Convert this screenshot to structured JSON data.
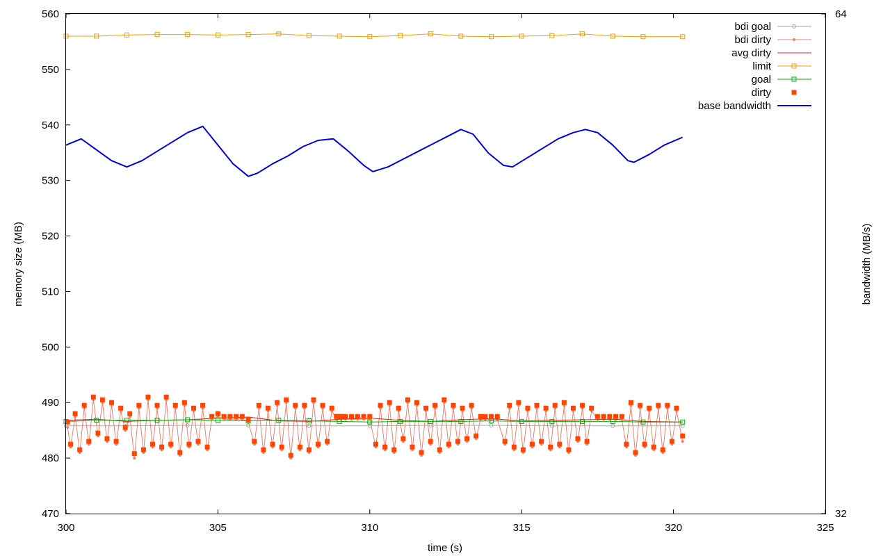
{
  "chart_data": {
    "type": "line",
    "xlabel": "time (s)",
    "ylabel": "memory size (MB)",
    "y2label": "bandwidth (MB/s)",
    "xlim": [
      300,
      325
    ],
    "ylim": [
      470,
      560
    ],
    "y2lim": [
      32,
      64
    ],
    "x_ticks": [
      "300",
      "305",
      "310",
      "315",
      "320",
      "325"
    ],
    "y_ticks": [
      "470",
      "480",
      "490",
      "500",
      "510",
      "520",
      "530",
      "540",
      "550",
      "560"
    ],
    "y2_ticks": [
      "32",
      "64"
    ],
    "grid": false,
    "legend_position": "top-right",
    "series": [
      {
        "name": "bdi goal",
        "color": "#a8a8a8",
        "style": "line-circles",
        "x": [
          300.0,
          302.0,
          304.0,
          306.0,
          308.0,
          310.0,
          312.0,
          314.0,
          316.0,
          318.0,
          320.3
        ],
        "y": [
          485.8,
          485.8,
          485.9,
          485.9,
          485.8,
          485.8,
          485.9,
          485.9,
          485.8,
          485.8,
          485.8
        ]
      },
      {
        "name": "bdi dirty",
        "color": "#f08070",
        "style": "line-dots",
        "x": [
          300.05,
          300.15,
          300.3,
          300.45,
          300.6,
          300.75,
          300.9,
          301.05,
          301.2,
          301.35,
          301.5,
          301.65,
          301.8,
          301.95,
          302.1,
          302.25,
          302.4,
          302.55,
          302.7,
          302.85,
          303.0,
          303.15,
          303.3,
          303.45,
          303.6,
          303.75,
          303.9,
          304.05,
          304.2,
          304.35,
          304.5,
          304.65,
          304.8,
          305.0,
          305.2,
          305.4,
          305.6,
          305.8,
          306.0,
          306.2,
          306.35,
          306.5,
          306.65,
          306.8,
          306.95,
          307.1,
          307.25,
          307.4,
          307.55,
          307.7,
          307.85,
          308.0,
          308.15,
          308.3,
          308.45,
          308.6,
          308.75,
          308.9,
          309.05,
          309.2,
          309.4,
          309.6,
          309.8,
          310.0,
          310.2,
          310.35,
          310.5,
          310.65,
          310.8,
          310.95,
          311.1,
          311.25,
          311.4,
          311.55,
          311.7,
          311.85,
          312.0,
          312.15,
          312.3,
          312.45,
          312.6,
          312.75,
          312.9,
          313.05,
          313.2,
          313.35,
          313.5,
          313.65,
          313.8,
          314.0,
          314.2,
          314.45,
          314.6,
          314.75,
          314.9,
          315.05,
          315.2,
          315.35,
          315.5,
          315.65,
          315.8,
          315.95,
          316.1,
          316.25,
          316.4,
          316.55,
          316.7,
          316.85,
          317.0,
          317.15,
          317.3,
          317.5,
          317.7,
          317.9,
          318.1,
          318.3,
          318.45,
          318.6,
          318.75,
          318.9,
          319.05,
          319.2,
          319.35,
          319.5,
          319.65,
          319.8,
          319.95,
          320.1,
          320.3
        ],
        "y": [
          485.5,
          482.0,
          487.5,
          481.0,
          489.0,
          482.5,
          490.5,
          484.0,
          490.0,
          483.0,
          489.5,
          482.5,
          488.5,
          485.0,
          487.5,
          480.0,
          489.0,
          481.0,
          490.5,
          482.0,
          489.0,
          481.5,
          490.5,
          482.0,
          489.0,
          480.5,
          489.5,
          482.0,
          488.5,
          482.5,
          489.0,
          481.5,
          487.0,
          487.5,
          487.0,
          487.0,
          487.0,
          487.0,
          486.5,
          482.5,
          489.0,
          481.0,
          488.5,
          482.0,
          489.5,
          481.5,
          490.0,
          480.0,
          489.0,
          481.5,
          489.0,
          481.0,
          490.0,
          482.0,
          489.0,
          482.5,
          488.5,
          487.0,
          487.0,
          487.0,
          487.0,
          487.0,
          487.0,
          487.0,
          482.0,
          489.0,
          481.5,
          489.5,
          481.0,
          488.5,
          483.0,
          490.0,
          481.5,
          489.5,
          480.5,
          488.5,
          482.5,
          489.0,
          481.0,
          490.0,
          482.0,
          489.0,
          482.5,
          488.5,
          483.0,
          489.0,
          483.5,
          487.0,
          487.0,
          487.0,
          487.0,
          482.5,
          489.0,
          481.5,
          489.5,
          481.0,
          488.5,
          482.0,
          489.0,
          482.5,
          488.5,
          481.5,
          489.0,
          482.0,
          489.5,
          481.0,
          488.5,
          483.0,
          489.0,
          482.5,
          488.5,
          487.0,
          487.0,
          487.0,
          487.0,
          487.0,
          482.0,
          489.5,
          480.5,
          489.0,
          482.0,
          488.5,
          481.5,
          489.0,
          481.0,
          489.0,
          482.5,
          488.5,
          483.0
        ]
      },
      {
        "name": "avg dirty",
        "color": "#e02020",
        "style": "line",
        "x": [
          300.0,
          301.0,
          302.0,
          303.0,
          304.0,
          305.0,
          306.0,
          307.0,
          308.0,
          309.0,
          310.0,
          311.0,
          312.0,
          313.0,
          314.0,
          315.0,
          316.0,
          317.0,
          318.0,
          319.0,
          320.3
        ],
        "y": [
          486.8,
          487.0,
          486.6,
          486.8,
          486.9,
          487.2,
          487.4,
          486.7,
          486.6,
          487.0,
          487.2,
          486.8,
          486.6,
          486.9,
          487.1,
          486.7,
          486.8,
          486.9,
          487.0,
          486.6,
          486.5
        ]
      },
      {
        "name": "limit",
        "color": "#f0a000",
        "style": "line-squares",
        "x": [
          300.0,
          301.0,
          302.0,
          303.0,
          304.0,
          305.0,
          306.0,
          307.0,
          308.0,
          309.0,
          310.0,
          311.0,
          312.0,
          313.0,
          314.0,
          315.0,
          316.0,
          317.0,
          318.0,
          319.0,
          320.3
        ],
        "y": [
          556.0,
          556.0,
          556.2,
          556.3,
          556.3,
          556.2,
          556.3,
          556.4,
          556.1,
          556.0,
          555.9,
          556.1,
          556.4,
          556.0,
          555.9,
          556.0,
          556.1,
          556.4,
          556.0,
          555.9,
          555.9
        ]
      },
      {
        "name": "goal",
        "color": "#00b000",
        "style": "line-squares",
        "x": [
          300.0,
          301.0,
          302.0,
          303.0,
          304.0,
          305.0,
          306.0,
          307.0,
          308.0,
          309.0,
          310.0,
          311.0,
          312.0,
          313.0,
          314.0,
          315.0,
          316.0,
          317.0,
          318.0,
          319.0,
          320.3
        ],
        "y": [
          486.6,
          486.8,
          486.8,
          486.8,
          486.9,
          486.8,
          486.7,
          486.8,
          486.7,
          486.6,
          486.5,
          486.6,
          486.6,
          486.6,
          486.7,
          486.6,
          486.6,
          486.6,
          486.6,
          486.5,
          486.5
        ]
      },
      {
        "name": "dirty",
        "color": "#ff4500",
        "style": "points",
        "x": [
          300.05,
          300.15,
          300.3,
          300.45,
          300.6,
          300.75,
          300.9,
          301.05,
          301.2,
          301.35,
          301.5,
          301.65,
          301.8,
          301.95,
          302.1,
          302.25,
          302.4,
          302.55,
          302.7,
          302.85,
          303.0,
          303.15,
          303.3,
          303.45,
          303.6,
          303.75,
          303.9,
          304.05,
          304.2,
          304.35,
          304.5,
          304.65,
          304.8,
          305.0,
          305.2,
          305.4,
          305.6,
          305.8,
          306.0,
          306.2,
          306.35,
          306.5,
          306.65,
          306.8,
          306.95,
          307.1,
          307.25,
          307.4,
          307.55,
          307.7,
          307.85,
          308.0,
          308.15,
          308.3,
          308.45,
          308.6,
          308.75,
          308.9,
          309.05,
          309.2,
          309.4,
          309.6,
          309.8,
          310.0,
          310.2,
          310.35,
          310.5,
          310.65,
          310.8,
          310.95,
          311.1,
          311.25,
          311.4,
          311.55,
          311.7,
          311.85,
          312.0,
          312.15,
          312.3,
          312.45,
          312.6,
          312.75,
          312.9,
          313.05,
          313.2,
          313.35,
          313.5,
          313.65,
          313.8,
          314.0,
          314.2,
          314.45,
          314.6,
          314.75,
          314.9,
          315.05,
          315.2,
          315.35,
          315.5,
          315.65,
          315.8,
          315.95,
          316.1,
          316.25,
          316.4,
          316.55,
          316.7,
          316.85,
          317.0,
          317.15,
          317.3,
          317.5,
          317.7,
          317.9,
          318.1,
          318.3,
          318.45,
          318.6,
          318.75,
          318.9,
          319.05,
          319.2,
          319.35,
          319.5,
          319.65,
          319.8,
          319.95,
          320.1,
          320.3
        ],
        "y": [
          486.5,
          482.5,
          488.0,
          481.5,
          489.5,
          483.0,
          491.0,
          484.5,
          490.5,
          483.5,
          490.0,
          483.0,
          489.0,
          485.5,
          488.0,
          480.8,
          489.5,
          481.5,
          491.0,
          482.5,
          489.5,
          482.0,
          491.0,
          482.5,
          489.5,
          481.0,
          490.0,
          482.5,
          489.0,
          483.0,
          489.5,
          482.0,
          487.5,
          488.0,
          487.5,
          487.5,
          487.5,
          487.5,
          487.0,
          483.0,
          489.5,
          481.5,
          489.0,
          482.5,
          490.0,
          482.0,
          490.5,
          480.5,
          489.5,
          482.0,
          489.5,
          481.5,
          490.5,
          482.5,
          489.5,
          483.0,
          489.0,
          487.5,
          487.5,
          487.5,
          487.5,
          487.5,
          487.5,
          487.5,
          482.5,
          489.5,
          482.0,
          490.0,
          481.5,
          489.0,
          483.5,
          490.5,
          482.0,
          490.0,
          481.0,
          489.0,
          483.0,
          489.5,
          481.5,
          490.5,
          482.5,
          489.5,
          483.0,
          489.0,
          483.5,
          489.5,
          484.0,
          487.5,
          487.5,
          487.5,
          487.5,
          483.0,
          489.5,
          482.0,
          490.0,
          481.5,
          489.0,
          482.5,
          489.5,
          483.0,
          489.0,
          482.0,
          489.5,
          482.5,
          490.0,
          481.5,
          489.0,
          483.5,
          489.5,
          483.0,
          489.0,
          487.5,
          487.5,
          487.5,
          487.5,
          487.5,
          482.5,
          490.0,
          481.0,
          489.5,
          482.5,
          489.0,
          482.0,
          489.5,
          481.5,
          489.5,
          483.0,
          489.0,
          484.0
        ]
      },
      {
        "name": "base bandwidth",
        "color": "#0000e0",
        "style": "line",
        "axis": "y2",
        "x": [
          300.0,
          300.5,
          301.0,
          301.5,
          302.0,
          302.5,
          303.0,
          303.5,
          304.0,
          304.5,
          305.0,
          305.5,
          306.0,
          306.3,
          306.8,
          307.3,
          307.8,
          308.3,
          308.8,
          309.3,
          309.8,
          310.1,
          310.6,
          311.1,
          311.6,
          312.1,
          312.6,
          313.0,
          313.4,
          313.9,
          314.4,
          314.7,
          315.2,
          315.7,
          316.2,
          316.7,
          317.1,
          317.5,
          318.0,
          318.5,
          318.7,
          319.2,
          319.7,
          320.3
        ],
        "y": [
          55.6,
          56.0,
          55.3,
          54.6,
          54.2,
          54.6,
          55.2,
          55.8,
          56.4,
          56.8,
          55.6,
          54.4,
          53.6,
          53.8,
          54.4,
          54.9,
          55.5,
          55.9,
          56.0,
          55.2,
          54.3,
          53.9,
          54.2,
          54.7,
          55.2,
          55.7,
          56.2,
          56.6,
          56.3,
          55.1,
          54.3,
          54.2,
          54.8,
          55.4,
          56.0,
          56.4,
          56.6,
          56.4,
          55.6,
          54.6,
          54.5,
          55.0,
          55.6,
          56.1
        ]
      }
    ]
  }
}
